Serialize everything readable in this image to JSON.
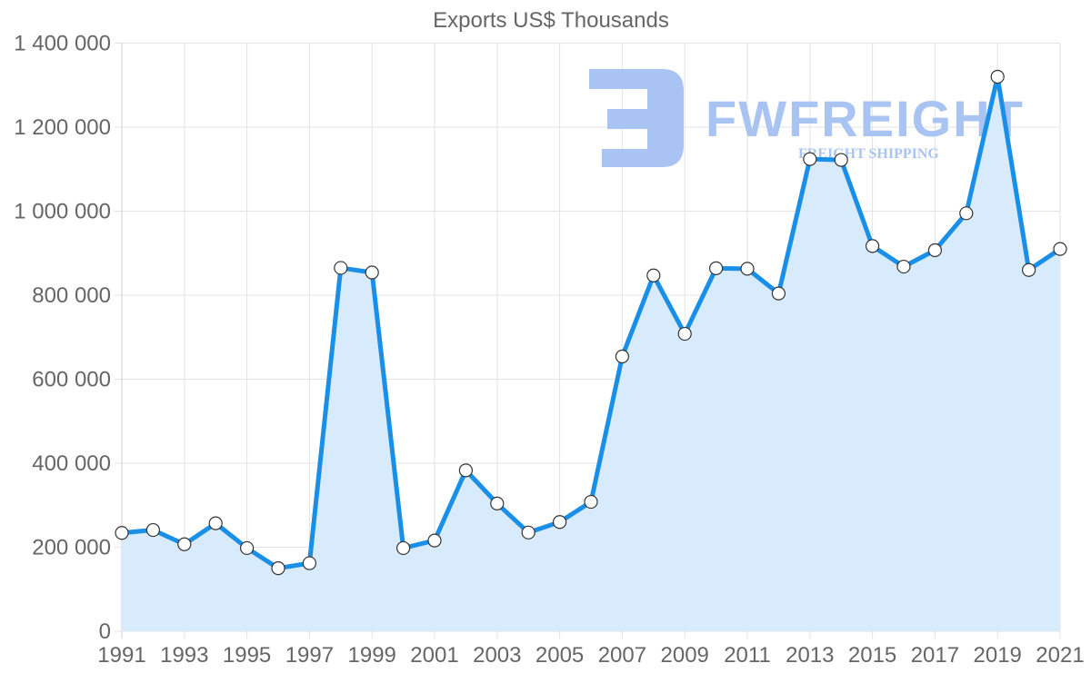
{
  "chart_data": {
    "type": "line",
    "title": "Exports US$ Thousands",
    "xlabel": "",
    "ylabel": "",
    "x": [
      1991,
      1992,
      1993,
      1994,
      1995,
      1996,
      1997,
      1998,
      1999,
      2000,
      2001,
      2002,
      2003,
      2004,
      2005,
      2006,
      2007,
      2008,
      2009,
      2010,
      2011,
      2012,
      2013,
      2014,
      2015,
      2016,
      2017,
      2018,
      2019,
      2020,
      2021
    ],
    "series": [
      {
        "name": "Exports US$ Thousands",
        "values": [
          234000,
          241000,
          207000,
          257000,
          198000,
          150000,
          162000,
          865000,
          854000,
          198000,
          216000,
          383000,
          304000,
          235000,
          260000,
          308000,
          654000,
          847000,
          708000,
          864000,
          863000,
          804000,
          1124000,
          1122000,
          917000,
          868000,
          907000,
          995000,
          1320000,
          860000,
          910000
        ],
        "color": "#1a8fe8",
        "fill": "#d8ebfc"
      }
    ],
    "ylim": [
      0,
      1400000
    ],
    "yticks": [
      0,
      200000,
      400000,
      600000,
      800000,
      1000000,
      1200000,
      1400000
    ],
    "ytick_labels": [
      "0",
      "200 000",
      "400 000",
      "600 000",
      "800 000",
      "1 000 000",
      "1 200 000",
      "1 400 000"
    ],
    "xtick_labels": [
      "1991",
      "1993",
      "1995",
      "1997",
      "1999",
      "2001",
      "2003",
      "2005",
      "2007",
      "2009",
      "2011",
      "2013",
      "2015",
      "2017",
      "2019",
      "2021"
    ],
    "grid": true,
    "legend": "none",
    "area_fill": true,
    "markers": "white circles with dark outline"
  },
  "watermark": {
    "brand": "FWFREIGHT",
    "tagline": "FREIGHT SHIPPING"
  }
}
